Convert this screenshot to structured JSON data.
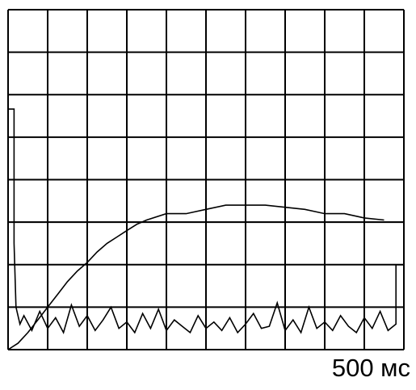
{
  "chart_data": {
    "type": "line",
    "xlim": [
      0,
      10
    ],
    "ylim": [
      0,
      8
    ],
    "xticks": [
      0,
      1,
      2,
      3,
      4,
      5,
      6,
      7,
      8,
      9,
      10
    ],
    "yticks": [
      0,
      1,
      2,
      3,
      4,
      5,
      6,
      7,
      8
    ],
    "grid": true,
    "annotation": "500 мс",
    "series": [
      {
        "color": "#000000",
        "x": [
          0,
          0.25,
          0.5,
          0.75,
          1,
          1.25,
          1.5,
          1.75,
          2,
          2.25,
          2.5,
          2.75,
          3,
          3.25,
          3.5,
          4,
          4.5,
          5,
          5.5,
          6,
          6.5,
          7,
          7.5,
          8,
          8.5,
          9,
          9.5
        ],
        "values": [
          0,
          0.15,
          0.4,
          0.7,
          1.0,
          1.3,
          1.6,
          1.85,
          2.05,
          2.3,
          2.5,
          2.65,
          2.8,
          2.95,
          3.05,
          3.2,
          3.2,
          3.3,
          3.4,
          3.4,
          3.4,
          3.35,
          3.3,
          3.2,
          3.2,
          3.1,
          3.05
        ]
      },
      {
        "color": "#000000",
        "x": [
          0,
          0,
          0.15,
          0.15,
          0.2,
          0.3,
          0.4,
          0.6,
          0.8,
          1,
          1.2,
          1.4,
          1.6,
          1.8,
          2,
          2.2,
          2.4,
          2.6,
          2.8,
          3,
          3.2,
          3.4,
          3.6,
          3.8,
          4,
          4.2,
          4.4,
          4.6,
          4.8,
          5,
          5.2,
          5.4,
          5.6,
          5.8,
          6,
          6.2,
          6.4,
          6.6,
          6.8,
          7,
          7.2,
          7.4,
          7.6,
          7.8,
          8,
          8.2,
          8.4,
          8.6,
          8.8,
          9,
          9.2,
          9.4,
          9.6,
          9.8,
          9.8,
          10
        ],
        "values": [
          0,
          5.66,
          5.66,
          2.5,
          1.0,
          0.6,
          0.8,
          0.45,
          0.9,
          0.5,
          0.75,
          0.4,
          1.05,
          0.55,
          0.8,
          0.45,
          0.7,
          1.0,
          0.5,
          0.65,
          0.4,
          0.85,
          0.5,
          0.95,
          0.45,
          0.7,
          0.55,
          0.4,
          0.8,
          0.5,
          0.65,
          0.45,
          0.75,
          0.4,
          0.6,
          0.85,
          0.5,
          0.55,
          1.1,
          0.45,
          0.7,
          0.4,
          1.0,
          0.5,
          0.65,
          0.45,
          0.8,
          0.55,
          0.4,
          0.75,
          0.5,
          0.9,
          0.45,
          0.6,
          2.0,
          2.0
        ]
      },
      {
        "color": "#000000",
        "x": [
          0,
          10
        ],
        "values": [
          3.0,
          3.0
        ]
      }
    ]
  }
}
